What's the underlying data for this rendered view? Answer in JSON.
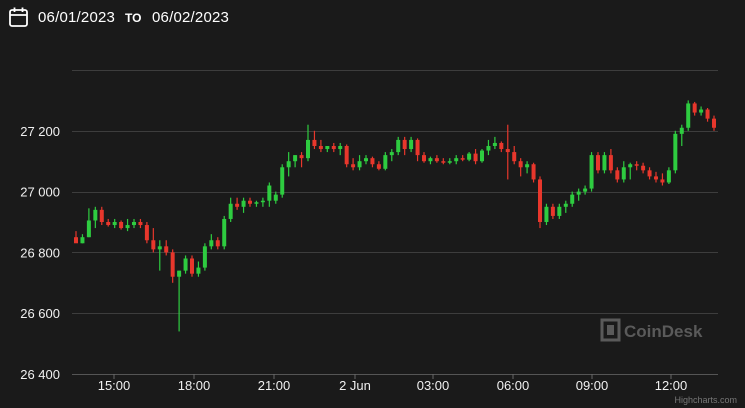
{
  "toolbar": {
    "calendar_icon": "calendar-icon",
    "date_from": "06/01/2023",
    "to_label": "TO",
    "date_to": "06/02/2023"
  },
  "watermark": {
    "logo_text": "CoinDesk",
    "logo_icon": "coindesk-logo-icon"
  },
  "credits": "Highcharts.com",
  "colors": {
    "up": "#2ecc40",
    "down": "#e8372c",
    "grid": "#3d3d3d",
    "background": "#1a1a1a"
  },
  "chart_data": {
    "type": "candlestick",
    "title": "",
    "xlabel": "",
    "ylabel": "",
    "ylim": [
      26400,
      27400
    ],
    "y_ticks": [
      "26 400",
      "26 600",
      "26 800",
      "27 000",
      "27 200"
    ],
    "x_ticks": [
      "15:00",
      "18:00",
      "21:00",
      "2 Jun",
      "03:00",
      "06:00",
      "09:00",
      "12:00"
    ],
    "grid": true,
    "candles": [
      [
        26850,
        26870,
        26840,
        26830
      ],
      [
        26830,
        26860,
        26830,
        26850
      ],
      [
        26850,
        26945,
        26850,
        26905
      ],
      [
        26905,
        26950,
        26880,
        26940
      ],
      [
        26940,
        26950,
        26890,
        26900
      ],
      [
        26900,
        26910,
        26885,
        26890
      ],
      [
        26890,
        26910,
        26880,
        26900
      ],
      [
        26900,
        26905,
        26875,
        26880
      ],
      [
        26880,
        26910,
        26870,
        26890
      ],
      [
        26890,
        26910,
        26880,
        26900
      ],
      [
        26900,
        26910,
        26880,
        26890
      ],
      [
        26890,
        26900,
        26830,
        26840
      ],
      [
        26840,
        26880,
        26800,
        26810
      ],
      [
        26810,
        26840,
        26740,
        26820
      ],
      [
        26820,
        26840,
        26790,
        26800
      ],
      [
        26800,
        26810,
        26700,
        26720
      ],
      [
        26720,
        26740,
        26540,
        26740
      ],
      [
        26740,
        26790,
        26730,
        26780
      ],
      [
        26780,
        26790,
        26720,
        26730
      ],
      [
        26730,
        26770,
        26720,
        26750
      ],
      [
        26750,
        26830,
        26740,
        26820
      ],
      [
        26820,
        26860,
        26810,
        26840
      ],
      [
        26840,
        26850,
        26810,
        26820
      ],
      [
        26820,
        26920,
        26810,
        26910
      ],
      [
        26910,
        26980,
        26900,
        26960
      ],
      [
        26960,
        26980,
        26940,
        26950
      ],
      [
        26950,
        26980,
        26930,
        26970
      ],
      [
        26970,
        26980,
        26950,
        26960
      ],
      [
        26960,
        26970,
        26950,
        26965
      ],
      [
        26965,
        26980,
        26950,
        26970
      ],
      [
        26970,
        27030,
        26950,
        27020
      ],
      [
        26970,
        27000,
        26960,
        26990
      ],
      [
        26990,
        27090,
        26980,
        27080
      ],
      [
        27080,
        27130,
        27050,
        27100
      ],
      [
        27100,
        27120,
        27080,
        27120
      ],
      [
        27120,
        27130,
        27080,
        27110
      ],
      [
        27110,
        27220,
        27100,
        27170
      ],
      [
        27170,
        27200,
        27140,
        27150
      ],
      [
        27150,
        27170,
        27130,
        27140
      ],
      [
        27140,
        27150,
        27130,
        27150
      ],
      [
        27150,
        27160,
        27130,
        27140
      ],
      [
        27140,
        27160,
        27120,
        27150
      ],
      [
        27150,
        27155,
        27080,
        27090
      ],
      [
        27090,
        27110,
        27070,
        27080
      ],
      [
        27080,
        27120,
        27070,
        27100
      ],
      [
        27100,
        27120,
        27090,
        27110
      ],
      [
        27110,
        27115,
        27080,
        27090
      ],
      [
        27090,
        27100,
        27070,
        27075
      ],
      [
        27075,
        27130,
        27070,
        27120
      ],
      [
        27120,
        27140,
        27100,
        27130
      ],
      [
        27130,
        27180,
        27120,
        27170
      ],
      [
        27170,
        27180,
        27120,
        27140
      ],
      [
        27140,
        27180,
        27130,
        27170
      ],
      [
        27170,
        27175,
        27100,
        27120
      ],
      [
        27120,
        27130,
        27095,
        27100
      ],
      [
        27100,
        27115,
        27090,
        27110
      ],
      [
        27110,
        27120,
        27095,
        27100
      ],
      [
        27100,
        27110,
        27090,
        27095
      ],
      [
        27095,
        27110,
        27090,
        27100
      ],
      [
        27100,
        27120,
        27090,
        27110
      ],
      [
        27110,
        27120,
        27100,
        27105
      ],
      [
        27105,
        27130,
        27100,
        27125
      ],
      [
        27125,
        27140,
        27090,
        27100
      ],
      [
        27100,
        27140,
        27095,
        27135
      ],
      [
        27135,
        27170,
        27120,
        27150
      ],
      [
        27150,
        27180,
        27140,
        27160
      ],
      [
        27160,
        27165,
        27130,
        27140
      ],
      [
        27140,
        27220,
        27040,
        27130
      ],
      [
        27130,
        27150,
        27090,
        27100
      ],
      [
        27100,
        27110,
        27050,
        27080
      ],
      [
        27080,
        27100,
        27060,
        27090
      ],
      [
        27090,
        27095,
        27030,
        27040
      ],
      [
        27040,
        27050,
        26880,
        26900
      ],
      [
        26900,
        26960,
        26890,
        26950
      ],
      [
        26950,
        26960,
        26910,
        26920
      ],
      [
        26920,
        26960,
        26910,
        26950
      ],
      [
        26950,
        26970,
        26930,
        26960
      ],
      [
        26960,
        27000,
        26950,
        26990
      ],
      [
        26990,
        27010,
        26970,
        27000
      ],
      [
        27000,
        27020,
        26990,
        27010
      ],
      [
        27010,
        27130,
        27000,
        27120
      ],
      [
        27120,
        27130,
        27060,
        27070
      ],
      [
        27070,
        27130,
        27060,
        27120
      ],
      [
        27120,
        27140,
        27060,
        27070
      ],
      [
        27070,
        27080,
        27030,
        27040
      ],
      [
        27040,
        27100,
        27030,
        27080
      ],
      [
        27080,
        27095,
        27040,
        27090
      ],
      [
        27090,
        27100,
        27070,
        27085
      ],
      [
        27085,
        27095,
        27060,
        27070
      ],
      [
        27070,
        27080,
        27040,
        27050
      ],
      [
        27050,
        27065,
        27030,
        27040
      ],
      [
        27040,
        27060,
        27020,
        27030
      ],
      [
        27030,
        27080,
        27025,
        27070
      ],
      [
        27070,
        27200,
        27060,
        27190
      ],
      [
        27190,
        27220,
        27150,
        27210
      ],
      [
        27210,
        27300,
        27200,
        27290
      ],
      [
        27290,
        27295,
        27250,
        27260
      ],
      [
        27260,
        27280,
        27250,
        27270
      ],
      [
        27270,
        27275,
        27230,
        27240
      ],
      [
        27240,
        27250,
        27200,
        27210
      ]
    ]
  }
}
